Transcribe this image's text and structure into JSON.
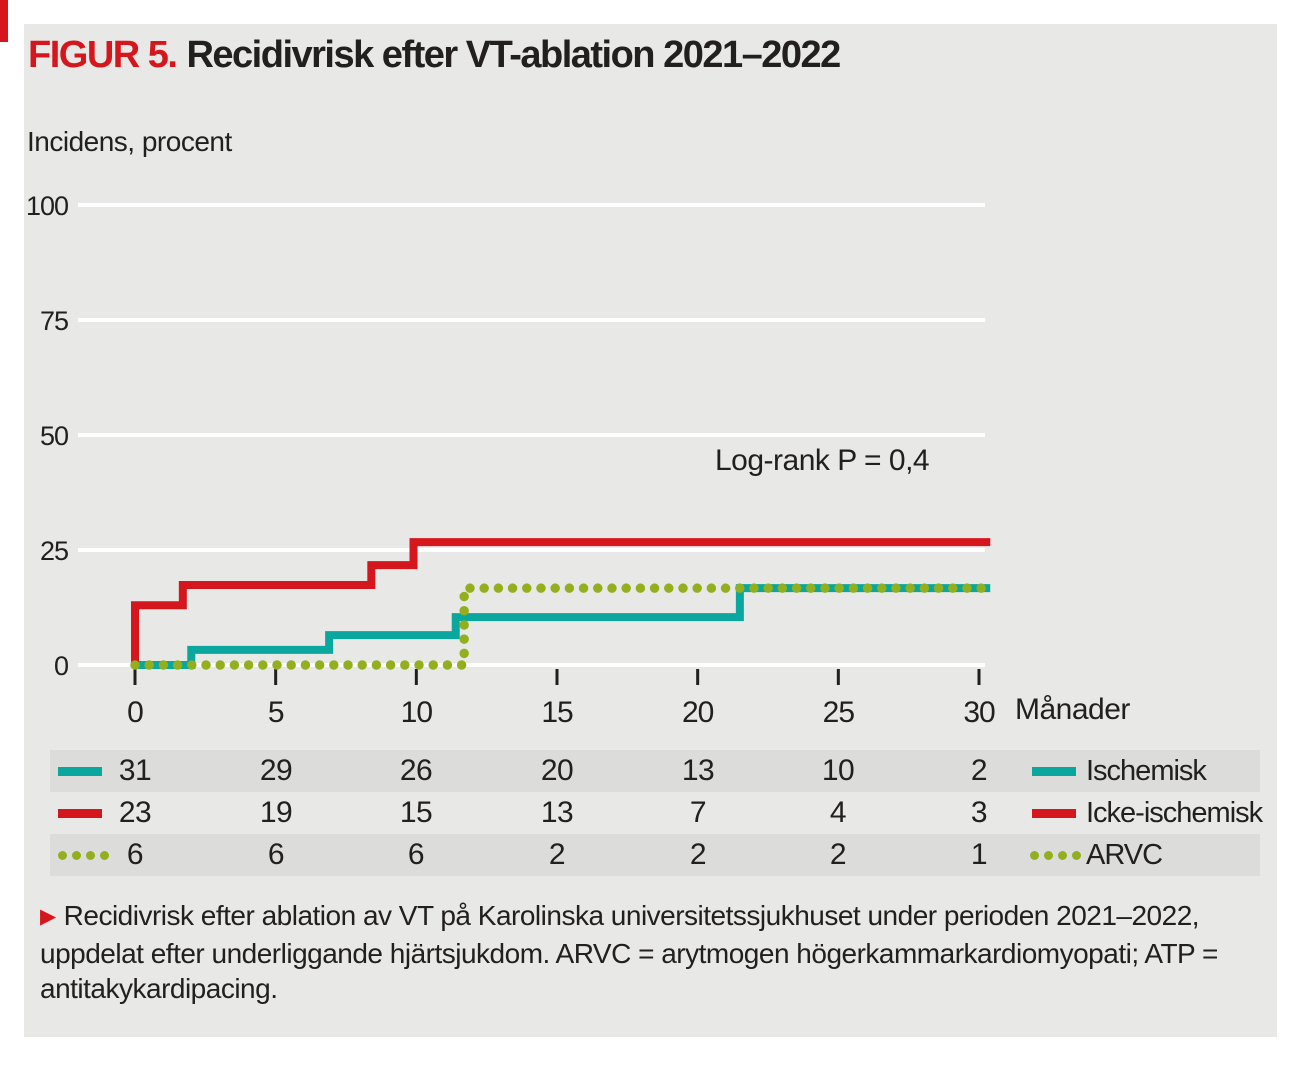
{
  "figure": {
    "label": "FIGUR 5.",
    "title": "Recidivrisk efter VT-ablation 2021–2022"
  },
  "chart_data": {
    "type": "line",
    "subtype": "kaplan-meier-step",
    "title": "Recidivrisk efter VT-ablation 2021–2022",
    "ylabel": "Incidens, procent",
    "xlabel": "Månader",
    "ylim": [
      0,
      100
    ],
    "xlim": [
      0,
      30
    ],
    "yticks": [
      0,
      25,
      50,
      75,
      100
    ],
    "xticks": [
      0,
      5,
      10,
      15,
      20,
      25,
      30
    ],
    "grid": "horizontal-white-on-gray",
    "legend_position": "right-of-risk-table",
    "annotation": "Log-rank P = 0,4",
    "series": [
      {
        "name": "Ischemisk",
        "color": "#0aa79e",
        "style": "solid",
        "points": [
          [
            0,
            0
          ],
          [
            2,
            3.3
          ],
          [
            6.9,
            6.5
          ],
          [
            11.4,
            10.4
          ],
          [
            21.5,
            16.7
          ],
          [
            30.4,
            16.7
          ]
        ]
      },
      {
        "name": "Icke-ischemisk",
        "color": "#d6161d",
        "style": "solid",
        "points": [
          [
            0,
            0
          ],
          [
            0,
            13
          ],
          [
            1.7,
            17.4
          ],
          [
            8.4,
            21.7
          ],
          [
            9.9,
            26.7
          ],
          [
            30.4,
            26.7
          ]
        ]
      },
      {
        "name": "ARVC",
        "color": "#94af1e",
        "style": "dotted",
        "points": [
          [
            0,
            0
          ],
          [
            11.7,
            16.7
          ],
          [
            30.4,
            16.7
          ]
        ]
      }
    ]
  },
  "risk_table": {
    "months": [
      0,
      5,
      10,
      15,
      20,
      25,
      30
    ],
    "rows": [
      {
        "series": "Ischemisk",
        "counts": [
          "31",
          "29",
          "26",
          "20",
          "13",
          "10",
          "2"
        ]
      },
      {
        "series": "Icke-ischemisk",
        "counts": [
          "23",
          "19",
          "15",
          "13",
          "7",
          "4",
          "3"
        ]
      },
      {
        "series": "ARVC",
        "counts": [
          "6",
          "6",
          "6",
          "2",
          "2",
          "2",
          "1"
        ]
      }
    ]
  },
  "caption": {
    "marker": "▶",
    "text": "Recidivrisk efter ablation av VT på Karolinska universitetssjukhuset under perioden 2021–2022, uppdelat efter underliggande hjärtsjukdom. ARVC = arytmogen högerkammarkardiomyopati; ATP = antitakykardipacing."
  },
  "colors": {
    "accent_red": "#d6161d",
    "teal": "#0aa79e",
    "olive": "#94af1e",
    "panel_bg": "#e8e8e7",
    "band_bg": "#dcdcdb",
    "text": "#22201e",
    "grid": "#ffffff"
  }
}
